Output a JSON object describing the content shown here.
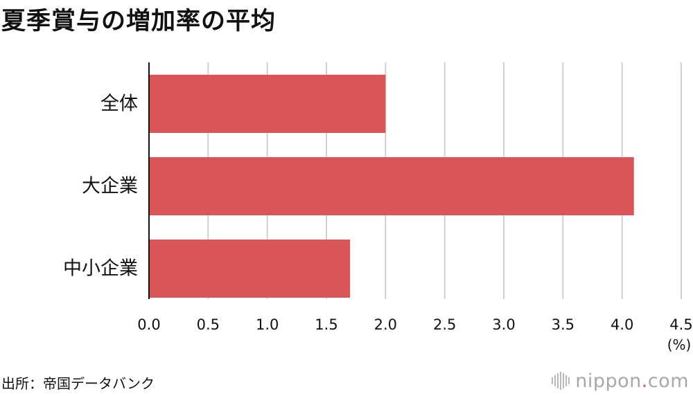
{
  "page": {
    "title": "夏季賞与の増加率の平均",
    "source": "出所：帝国データバンク",
    "logo": {
      "name": "nippon",
      "dot": ".",
      "tld": "com"
    }
  },
  "colors": {
    "bar": "#d95557",
    "grid": "#cfcfcf",
    "axis": "#111111",
    "logo_dot": "#d9534f"
  },
  "chart_data": {
    "type": "bar",
    "orientation": "horizontal",
    "title": "夏季賞与の増加率の平均",
    "categories": [
      "全体",
      "大企業",
      "中小企業"
    ],
    "values": [
      2.0,
      4.1,
      1.7
    ],
    "xlim": [
      0,
      4.5
    ],
    "xticks": [
      "0.0",
      "0.5",
      "1.0",
      "1.5",
      "2.0",
      "2.5",
      "3.0",
      "3.5",
      "4.0",
      "4.5"
    ],
    "unit_label": "(%)",
    "grid": true,
    "legend": "none"
  }
}
